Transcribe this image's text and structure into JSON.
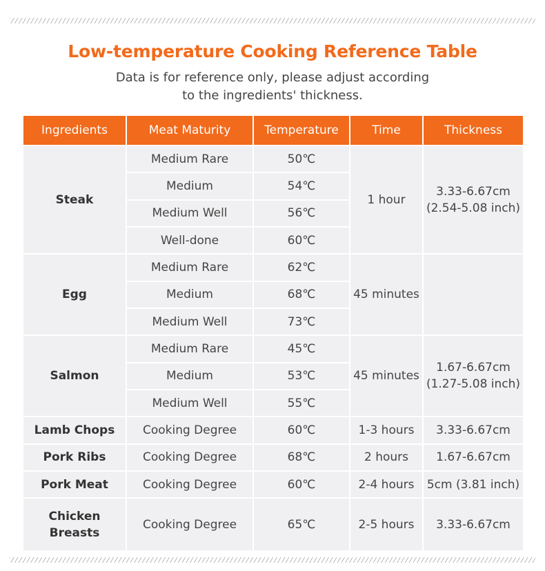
{
  "title": "Low-temperature Cooking Reference Table",
  "subtitle": {
    "line1": "Data is for reference only, please adjust according",
    "line2": "to the ingredients' thickness."
  },
  "headers": [
    "Ingredients",
    "Meat Maturity",
    "Temperature",
    "Time",
    "Thickness"
  ],
  "groups": [
    {
      "ingredient": "Steak",
      "time": "1 hour",
      "thickness": [
        "3.33-6.67cm",
        "(2.54-5.08 inch)"
      ],
      "rows": [
        {
          "maturity": "Medium Rare",
          "temp": "50℃"
        },
        {
          "maturity": "Medium",
          "temp": "54℃"
        },
        {
          "maturity": "Medium Well",
          "temp": "56℃"
        },
        {
          "maturity": "Well-done",
          "temp": "60℃"
        }
      ]
    },
    {
      "ingredient": "Egg",
      "time": "45 minutes",
      "thickness": [],
      "rows": [
        {
          "maturity": "Medium Rare",
          "temp": "62℃"
        },
        {
          "maturity": "Medium",
          "temp": "68℃"
        },
        {
          "maturity": "Medium Well",
          "temp": "73℃"
        }
      ]
    },
    {
      "ingredient": "Salmon",
      "time": "45 minutes",
      "thickness": [
        "1.67-6.67cm",
        "(1.27-5.08 inch)"
      ],
      "rows": [
        {
          "maturity": "Medium Rare",
          "temp": "45℃"
        },
        {
          "maturity": "Medium",
          "temp": "53℃"
        },
        {
          "maturity": "Medium Well",
          "temp": "55℃"
        }
      ]
    },
    {
      "ingredient": "Lamb Chops",
      "time": "1-3 hours",
      "thickness": [
        "3.33-6.67cm"
      ],
      "rows": [
        {
          "maturity": "Cooking Degree",
          "temp": "60℃"
        }
      ]
    },
    {
      "ingredient": "Pork Ribs",
      "time": "2 hours",
      "thickness": [
        "1.67-6.67cm"
      ],
      "rows": [
        {
          "maturity": "Cooking Degree",
          "temp": "68℃"
        }
      ]
    },
    {
      "ingredient": "Pork Meat",
      "time": "2-4 hours",
      "thickness": [
        "5cm (3.81 inch)"
      ],
      "rows": [
        {
          "maturity": "Cooking Degree",
          "temp": "60℃"
        }
      ]
    },
    {
      "ingredient": "Chicken Breasts",
      "time": "2-5 hours",
      "thickness": [
        "3.33-6.67cm"
      ],
      "rows": [
        {
          "maturity": "Cooking Degree",
          "temp": "65℃"
        }
      ]
    }
  ],
  "colors": {
    "accent": "#f26a1b",
    "cell_background": "#f0f0f2",
    "header_text": "#ffffff"
  }
}
